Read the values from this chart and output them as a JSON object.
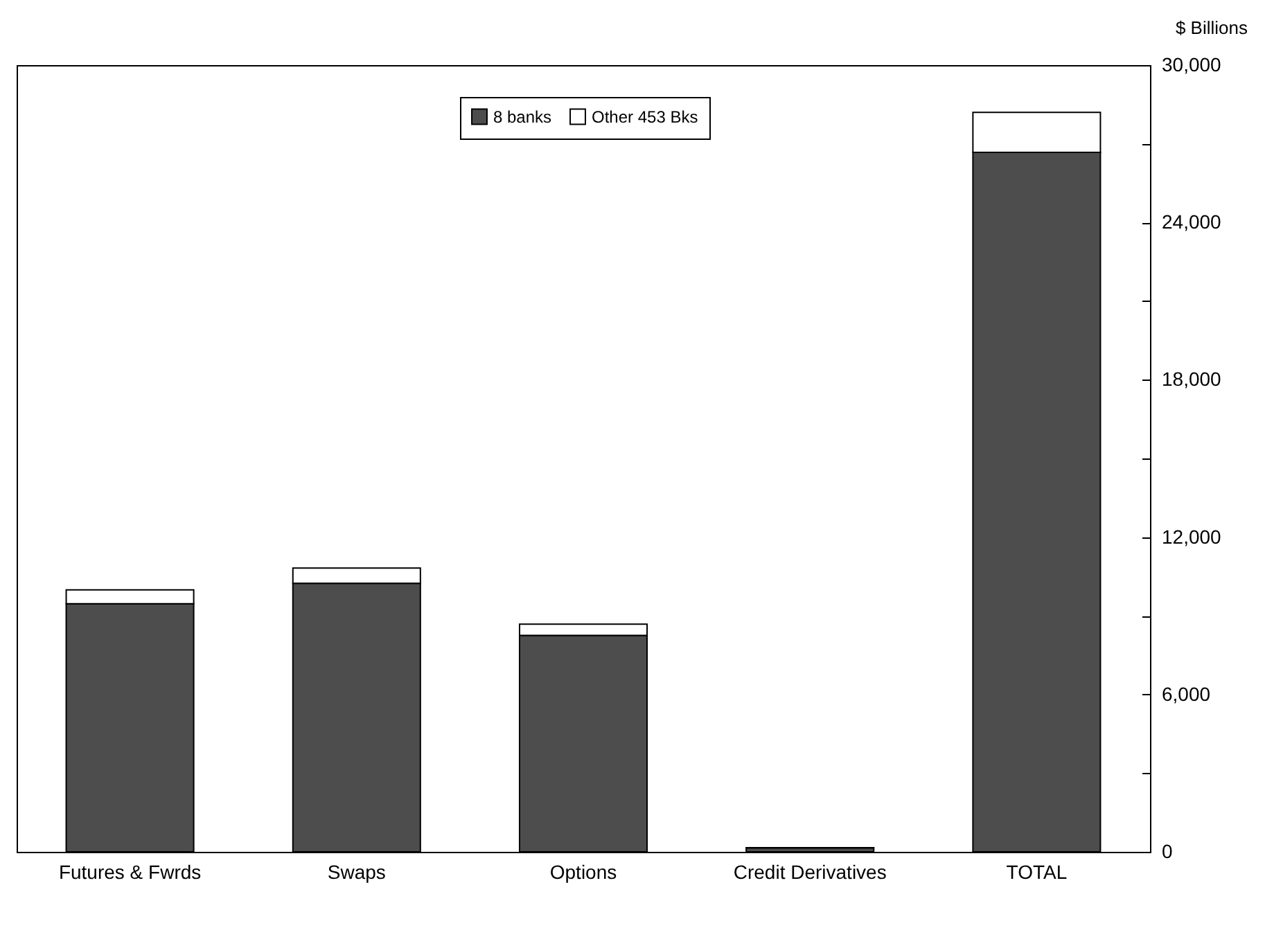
{
  "chart_data": {
    "type": "bar",
    "stacked": true,
    "ylabel": "$ Billions",
    "categories": [
      "Futures & Fwrds",
      "Swaps",
      "Options",
      "Credit Derivatives",
      "TOTAL"
    ],
    "series": [
      {
        "name": "8 banks",
        "color": "#4d4d4d",
        "values": [
          9460,
          10240,
          8250,
          150,
          26670
        ]
      },
      {
        "name": "Other 453 Bks",
        "color": "#ffffff",
        "values": [
          530,
          580,
          430,
          10,
          1530
        ]
      }
    ],
    "ylim": [
      0,
      30000
    ],
    "yticks": [
      0,
      {
        "value": 3000,
        "label": null
      },
      {
        "value": 6000,
        "label": "6,000"
      },
      {
        "value": 9000,
        "label": null
      },
      {
        "value": 12000,
        "label": "12,000"
      },
      {
        "value": 15000,
        "label": null
      },
      {
        "value": 18000,
        "label": "18,000"
      },
      {
        "value": 21000,
        "label": null
      },
      {
        "value": 24000,
        "label": "24,000"
      },
      {
        "value": 27000,
        "label": null
      },
      {
        "value": 30000,
        "label": "30,000"
      }
    ],
    "grid": false,
    "legend": "top"
  }
}
